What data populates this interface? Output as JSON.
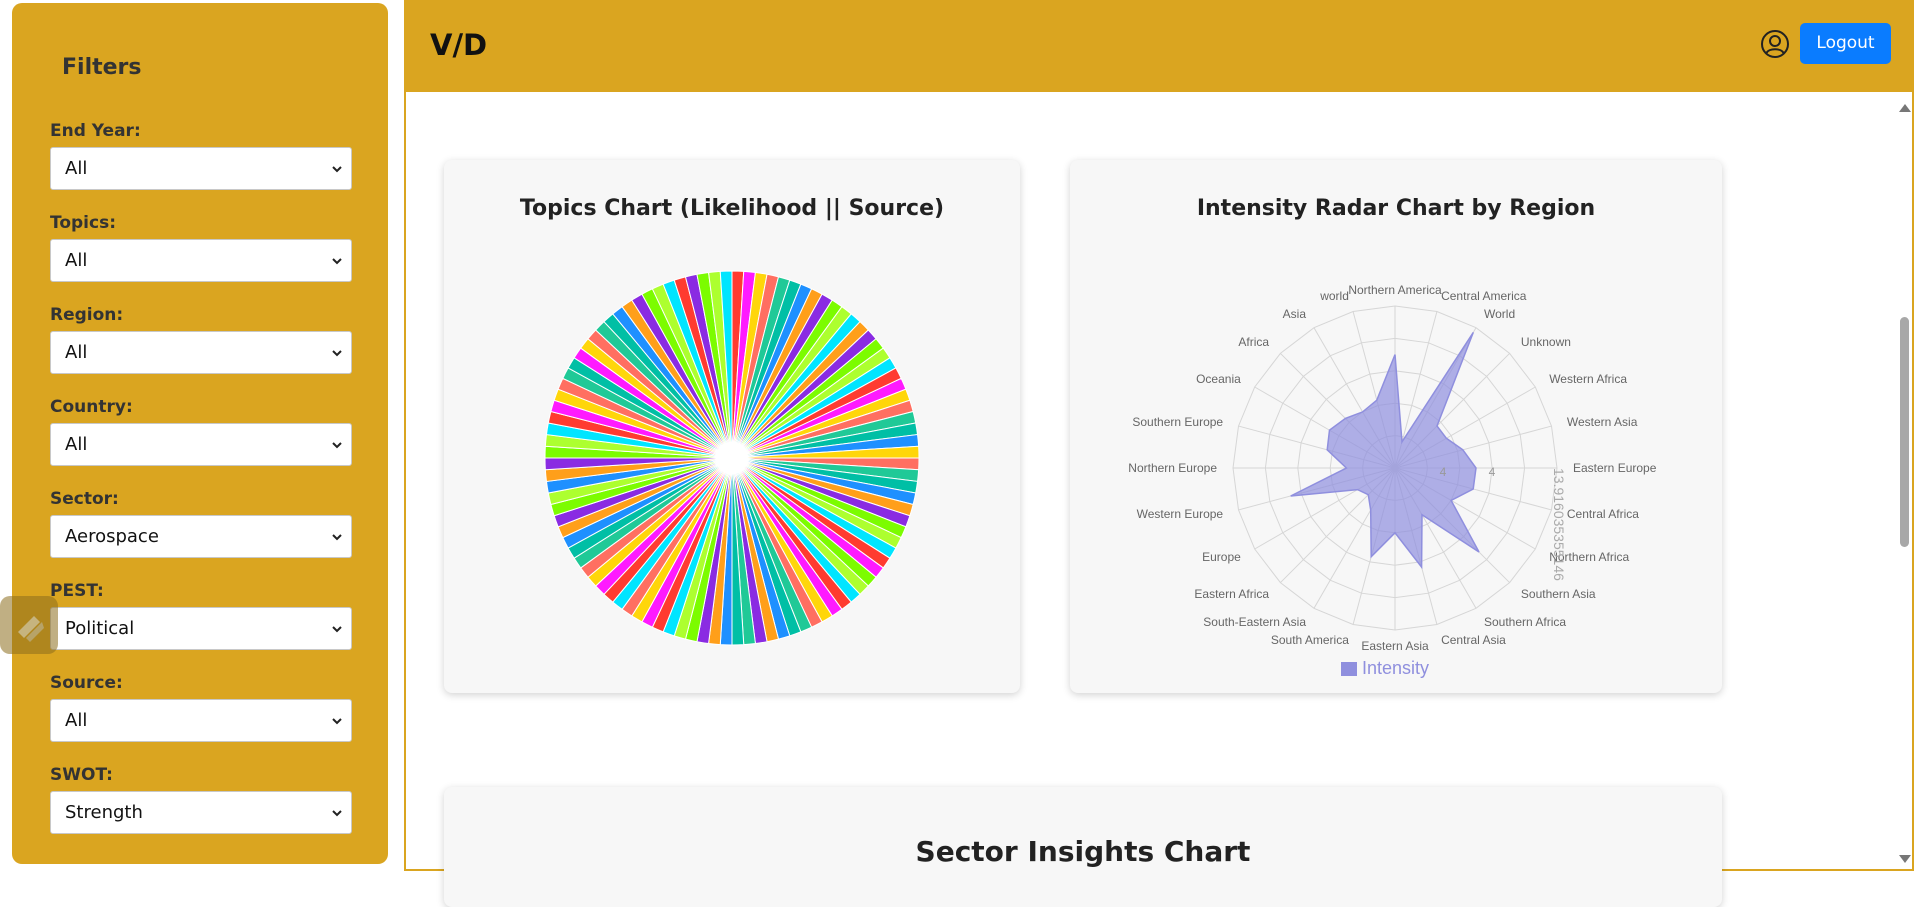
{
  "sidebar": {
    "title": "Filters",
    "filters": [
      {
        "label": "End Year:",
        "value": "All"
      },
      {
        "label": "Topics:",
        "value": "All"
      },
      {
        "label": "Region:",
        "value": "All"
      },
      {
        "label": "Country:",
        "value": "All"
      },
      {
        "label": "Sector:",
        "value": "Aerospace"
      },
      {
        "label": "PEST:",
        "value": "Political"
      },
      {
        "label": "Source:",
        "value": "All"
      },
      {
        "label": "SWOT:",
        "value": "Strength"
      }
    ]
  },
  "header": {
    "brand": "V/D",
    "logout_label": "Logout"
  },
  "colors": {
    "accent": "#daa520",
    "button": "#0a7cff",
    "radar_fill": "#8f8fde"
  },
  "cards": {
    "topics_title": "Topics Chart (Likelihood || Source)",
    "radar_title": "Intensity Radar Chart by Region",
    "sector_title": "Sector Insights Chart"
  },
  "chart_data": [
    {
      "type": "pie",
      "title": "Topics Chart (Likelihood || Source)",
      "slices": 100,
      "values": "equal",
      "palette": [
        "#ff3b30",
        "#ff9f1a",
        "#ffd60a",
        "#7cfc00",
        "#20c997",
        "#00e5ff",
        "#1e90ff",
        "#ff1aff",
        "#8a2be2",
        "#ff6f61",
        "#adff2f",
        "#00bfa5"
      ]
    },
    {
      "type": "radar",
      "title": "Intensity Radar Chart by Region",
      "legend": "Intensity",
      "categories": [
        "Northern America",
        "Central America",
        "World",
        "Unknown",
        "Western Africa",
        "Western Asia",
        "Eastern Europe",
        "Central Africa",
        "Northern Africa",
        "Southern Asia",
        "Southern Africa",
        "Central Asia",
        "Eastern Asia",
        "South America",
        "South-Eastern Asia",
        "Eastern Africa",
        "Europe",
        "Western Europe",
        "Northern Europe",
        "Southern Europe",
        "Oceania",
        "Africa",
        "Asia",
        "world"
      ],
      "values": [
        42,
        10,
        58,
        22,
        22,
        26,
        30,
        30,
        24,
        44,
        20,
        38,
        24,
        34,
        18,
        14,
        16,
        40,
        18,
        26,
        28,
        26,
        24,
        26
      ],
      "scale_labels": [
        "4",
        "13.9",
        "1603",
        "5355",
        "146"
      ],
      "rmax": 60
    }
  ]
}
